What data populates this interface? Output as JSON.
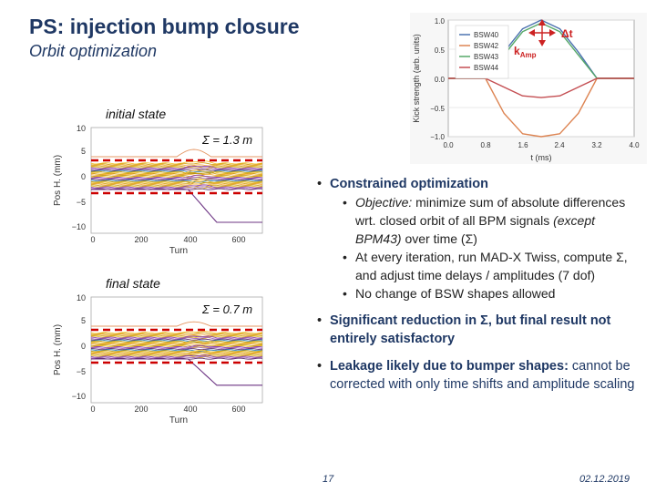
{
  "slide": {
    "title": "PS: injection bump closure",
    "subtitle": "Orbit optimization",
    "initial_label": "initial state",
    "final_label": "final state",
    "sigma_initial": "Σ = 1.3 m",
    "sigma_final": "Σ = 0.7 m",
    "page_number": "17",
    "date": "02.12.2019"
  },
  "bullets": {
    "b1": "Constrained optimization",
    "b1_s1_lead": "Objective:",
    "b1_s1_rest_a": " minimize sum of absolute differences wrt. closed orbit of all BPM signals ",
    "b1_s1_italic": "(except BPM43)",
    "b1_s1_rest_b": " over time (Σ)",
    "b1_s2": "At every iteration, run MAD-X Twiss, compute Σ, and adjust time delays / amplitudes (7 dof)",
    "b1_s3": "No change of BSW shapes allowed",
    "b2": "Significant reduction in Σ, but final result not entirely satisfactory",
    "b3_bold": "Leakage likely due to bumper shapes:",
    "b3_rest": " cannot be corrected with only time shifts and amplitude scaling"
  },
  "kick_plot": {
    "ylabel": "Kick strength (arb. units)",
    "xlabel": "t (ms)",
    "delta_t_label": "Δt",
    "k_amp_label": "k",
    "k_amp_sub": "Amp",
    "legend": [
      "BSW40",
      "BSW42",
      "BSW43",
      "BSW44"
    ],
    "yticks": [
      "1.0",
      "0.5",
      "0.0",
      "−0.5",
      "−1.0"
    ],
    "xticks": [
      "0.0",
      "0.8",
      "1.6",
      "2.4",
      "3.2",
      "4.0"
    ]
  },
  "orbit_plots": {
    "ylabel": "Pos H. (mm)",
    "xlabel": "Turn",
    "yticks": [
      "10",
      "5",
      "0",
      "−5",
      "−10"
    ],
    "xticks": [
      "0",
      "200",
      "400",
      "600"
    ]
  },
  "chart_data": [
    {
      "type": "line",
      "title": "",
      "xlabel": "t (ms)",
      "ylabel": "Kick strength (arb. units)",
      "xlim": [
        0,
        4.0
      ],
      "ylim": [
        -1.0,
        1.0
      ],
      "series": [
        {
          "name": "BSW40",
          "color": "#4c72b0",
          "x": [
            0.8,
            1.2,
            1.6,
            2.0,
            2.4,
            2.8,
            3.2
          ],
          "values": [
            0,
            0.45,
            0.85,
            1.0,
            0.85,
            0.45,
            0
          ]
        },
        {
          "name": "BSW42",
          "color": "#dd8452",
          "x": [
            0.8,
            1.2,
            1.6,
            2.0,
            2.4,
            2.8,
            3.2
          ],
          "values": [
            0,
            -0.6,
            -0.95,
            -1.0,
            -0.95,
            -0.6,
            0
          ]
        },
        {
          "name": "BSW43",
          "color": "#55a868",
          "x": [
            0.8,
            1.2,
            1.6,
            2.0,
            2.4,
            2.8,
            3.2
          ],
          "values": [
            0,
            0.4,
            0.8,
            0.95,
            0.8,
            0.4,
            0
          ]
        },
        {
          "name": "BSW44",
          "color": "#c44e52",
          "x": [
            0.8,
            1.2,
            1.6,
            2.0,
            2.4,
            2.8,
            3.2
          ],
          "values": [
            0,
            -0.15,
            -0.3,
            -0.33,
            -0.3,
            -0.15,
            0
          ]
        }
      ]
    },
    {
      "type": "line",
      "title": "initial state",
      "annotation": "Σ = 1.3 m",
      "xlabel": "Turn",
      "ylabel": "Pos H. (mm)",
      "xlim": [
        0,
        700
      ],
      "ylim": [
        -12,
        10
      ],
      "bounds": [
        3,
        -3
      ],
      "series_description": "BPM traces between bounds; orbit excursion near turn 400"
    },
    {
      "type": "line",
      "title": "final state",
      "annotation": "Σ = 0.7 m",
      "xlabel": "Turn",
      "ylabel": "Pos H. (mm)",
      "xlim": [
        0,
        700
      ],
      "ylim": [
        -12,
        10
      ],
      "bounds": [
        3,
        -3
      ],
      "series_description": "BPM traces between bounds; reduced excursion near turn 400"
    }
  ]
}
